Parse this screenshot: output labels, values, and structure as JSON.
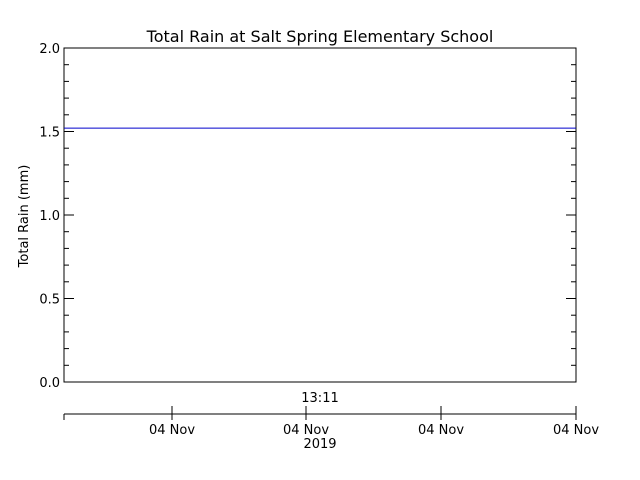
{
  "chart_data": {
    "type": "line",
    "title": "Total Rain at Salt Spring Elementary School",
    "ylabel": "Total Rain (mm)",
    "ylim": [
      0.0,
      2.0
    ],
    "y_ticks": [
      "0.0",
      "0.5",
      "1.0",
      "1.5",
      "2.0"
    ],
    "y_tick_values": [
      0.0,
      0.5,
      1.0,
      1.5,
      2.0
    ],
    "y_minor_step": 0.1,
    "time_label": "13:11",
    "year_label": "2019",
    "x_ticks": [
      "04 Nov",
      "04 Nov",
      "04 Nov",
      "04 Nov"
    ],
    "series": [
      {
        "color": "#0000cc",
        "values": [
          1.52,
          1.52
        ]
      }
    ],
    "grid": false
  }
}
